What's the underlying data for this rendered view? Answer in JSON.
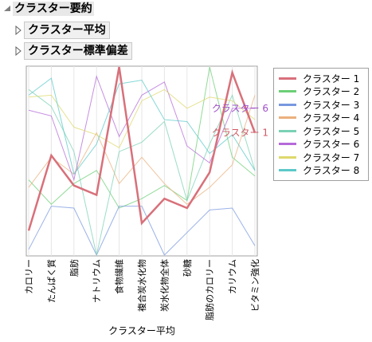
{
  "title": "クラスター要約",
  "sections": [
    {
      "label": "クラスター平均"
    },
    {
      "label": "クラスター標準偏差"
    }
  ],
  "chart_data": {
    "type": "line",
    "xlabel": "クラスター平均",
    "categories": [
      "カロリー",
      "たんぱく質",
      "脂肪",
      "ナトリウム",
      "食物繊維",
      "複合炭水化物",
      "炭水化物全体",
      "砂糖",
      "脂肪のカロリー",
      "カリウム",
      "ビタミン強化"
    ],
    "ylim": [
      0,
      1
    ],
    "series": [
      {
        "name": "クラスター 1",
        "color": "#d8707a",
        "highlight": true,
        "values": [
          0.13,
          0.53,
          0.37,
          0.32,
          1.0,
          0.17,
          0.3,
          0.25,
          0.44,
          0.97,
          0.65
        ]
      },
      {
        "name": "クラスター 2",
        "color": "#6ccf76",
        "values": [
          0.4,
          0.27,
          0.38,
          0.45,
          0.25,
          0.3,
          0.37,
          0.29,
          1.0,
          0.52,
          0.42
        ]
      },
      {
        "name": "クラスター 3",
        "color": "#7898e0",
        "values": [
          0.03,
          0.26,
          0.25,
          0.0,
          0.26,
          0.26,
          0.0,
          0.12,
          0.24,
          0.25,
          0.05
        ]
      },
      {
        "name": "クラスター 4",
        "color": "#ebb07e",
        "values": [
          0.36,
          0.52,
          0.43,
          0.65,
          0.38,
          0.52,
          0.38,
          0.27,
          0.36,
          0.48,
          0.85
        ]
      },
      {
        "name": "クラスター 5",
        "color": "#7bd1b5",
        "values": [
          0.88,
          0.79,
          0.55,
          0.0,
          0.55,
          0.6,
          0.71,
          0.29,
          0.59,
          0.85,
          0.45
        ]
      },
      {
        "name": "クラスター 6",
        "color": "#b46ad8",
        "values": [
          0.77,
          0.74,
          0.4,
          0.95,
          0.63,
          0.85,
          0.92,
          0.58,
          0.49,
          0.78,
          0.78
        ]
      },
      {
        "name": "クラスター 7",
        "color": "#ded86c",
        "values": [
          0.84,
          0.85,
          0.68,
          0.64,
          0.57,
          0.82,
          0.88,
          0.78,
          0.84,
          0.82,
          0.72
        ]
      },
      {
        "name": "クラスター 8",
        "color": "#5cc8c8",
        "values": [
          0.85,
          0.94,
          0.43,
          0.59,
          0.91,
          0.93,
          0.72,
          0.71,
          0.54,
          0.64,
          0.45
        ]
      }
    ],
    "annotations": [
      {
        "text": "クラスター 6",
        "series": "クラスター 6",
        "color": "#a050c8"
      },
      {
        "text": "クラスター 1",
        "series": "クラスター 1",
        "color": "#d05a66"
      }
    ],
    "legend": "right"
  }
}
